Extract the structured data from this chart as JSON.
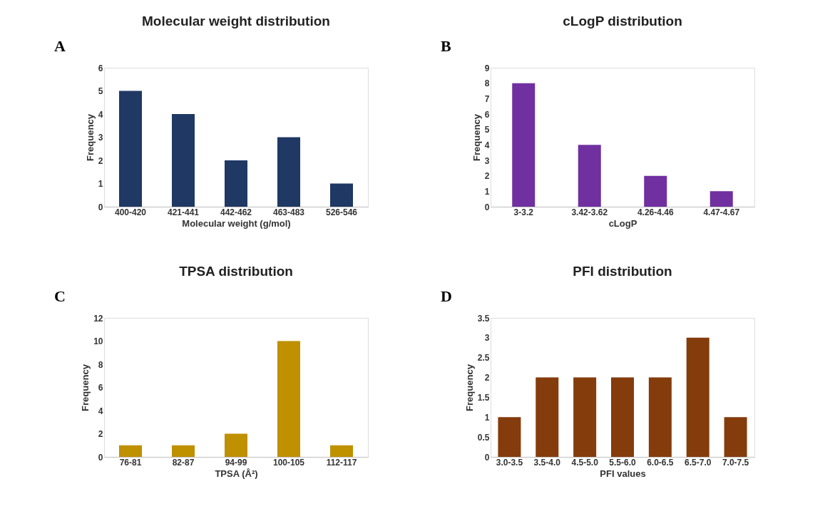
{
  "chart_data": [
    {
      "type": "bar",
      "title": "Molecular weight distribution",
      "xlabel": "Molecular weight (g/mol)",
      "ylabel": "Frequency",
      "annotations": [
        "A"
      ],
      "categories": [
        "400-420",
        "421-441",
        "442-462",
        "463-483",
        "526-546"
      ],
      "values": [
        5,
        4,
        2,
        3,
        1
      ],
      "color": "#1f3864",
      "ylim": [
        0,
        6
      ],
      "yticks": [
        0,
        1,
        2,
        3,
        4,
        5,
        6
      ],
      "grid": false
    },
    {
      "type": "bar",
      "title": "cLogP distribution",
      "xlabel": "cLogP",
      "ylabel": "Frequency",
      "annotations": [
        "B"
      ],
      "categories": [
        "3-3.2",
        "3.42-3.62",
        "4.26-4.46",
        "4.47-4.67"
      ],
      "values": [
        8,
        4,
        2,
        1
      ],
      "color": "#7030a0",
      "ylim": [
        0,
        9
      ],
      "yticks": [
        0,
        1,
        2,
        3,
        4,
        5,
        6,
        7,
        8,
        9
      ],
      "grid": false
    },
    {
      "type": "bar",
      "title": "TPSA distribution",
      "xlabel": "TPSA (Å²)",
      "ylabel": "Frequency",
      "annotations": [
        "C"
      ],
      "categories": [
        "76-81",
        "82-87",
        "94-99",
        "100-105",
        "112-117"
      ],
      "values": [
        1,
        1,
        2,
        10,
        1
      ],
      "color": "#bf9000",
      "ylim": [
        0,
        12
      ],
      "yticks": [
        0,
        2,
        4,
        6,
        8,
        10,
        12
      ],
      "grid": false
    },
    {
      "type": "bar",
      "title": "PFI distribution",
      "xlabel": "PFI values",
      "ylabel": "Frequency",
      "annotations": [
        "D"
      ],
      "categories": [
        "3.0-3.5",
        "3.5-4.0",
        "4.5-5.0",
        "5.5-6.0",
        "6.0-6.5",
        "6.5-7.0",
        "7.0-7.5"
      ],
      "values": [
        1,
        2,
        2,
        2,
        2,
        3,
        1
      ],
      "color": "#843c0c",
      "ylim": [
        0,
        3.5
      ],
      "yticks": [
        0,
        0.5,
        1,
        1.5,
        2,
        2.5,
        3,
        3.5
      ],
      "grid": false
    }
  ]
}
